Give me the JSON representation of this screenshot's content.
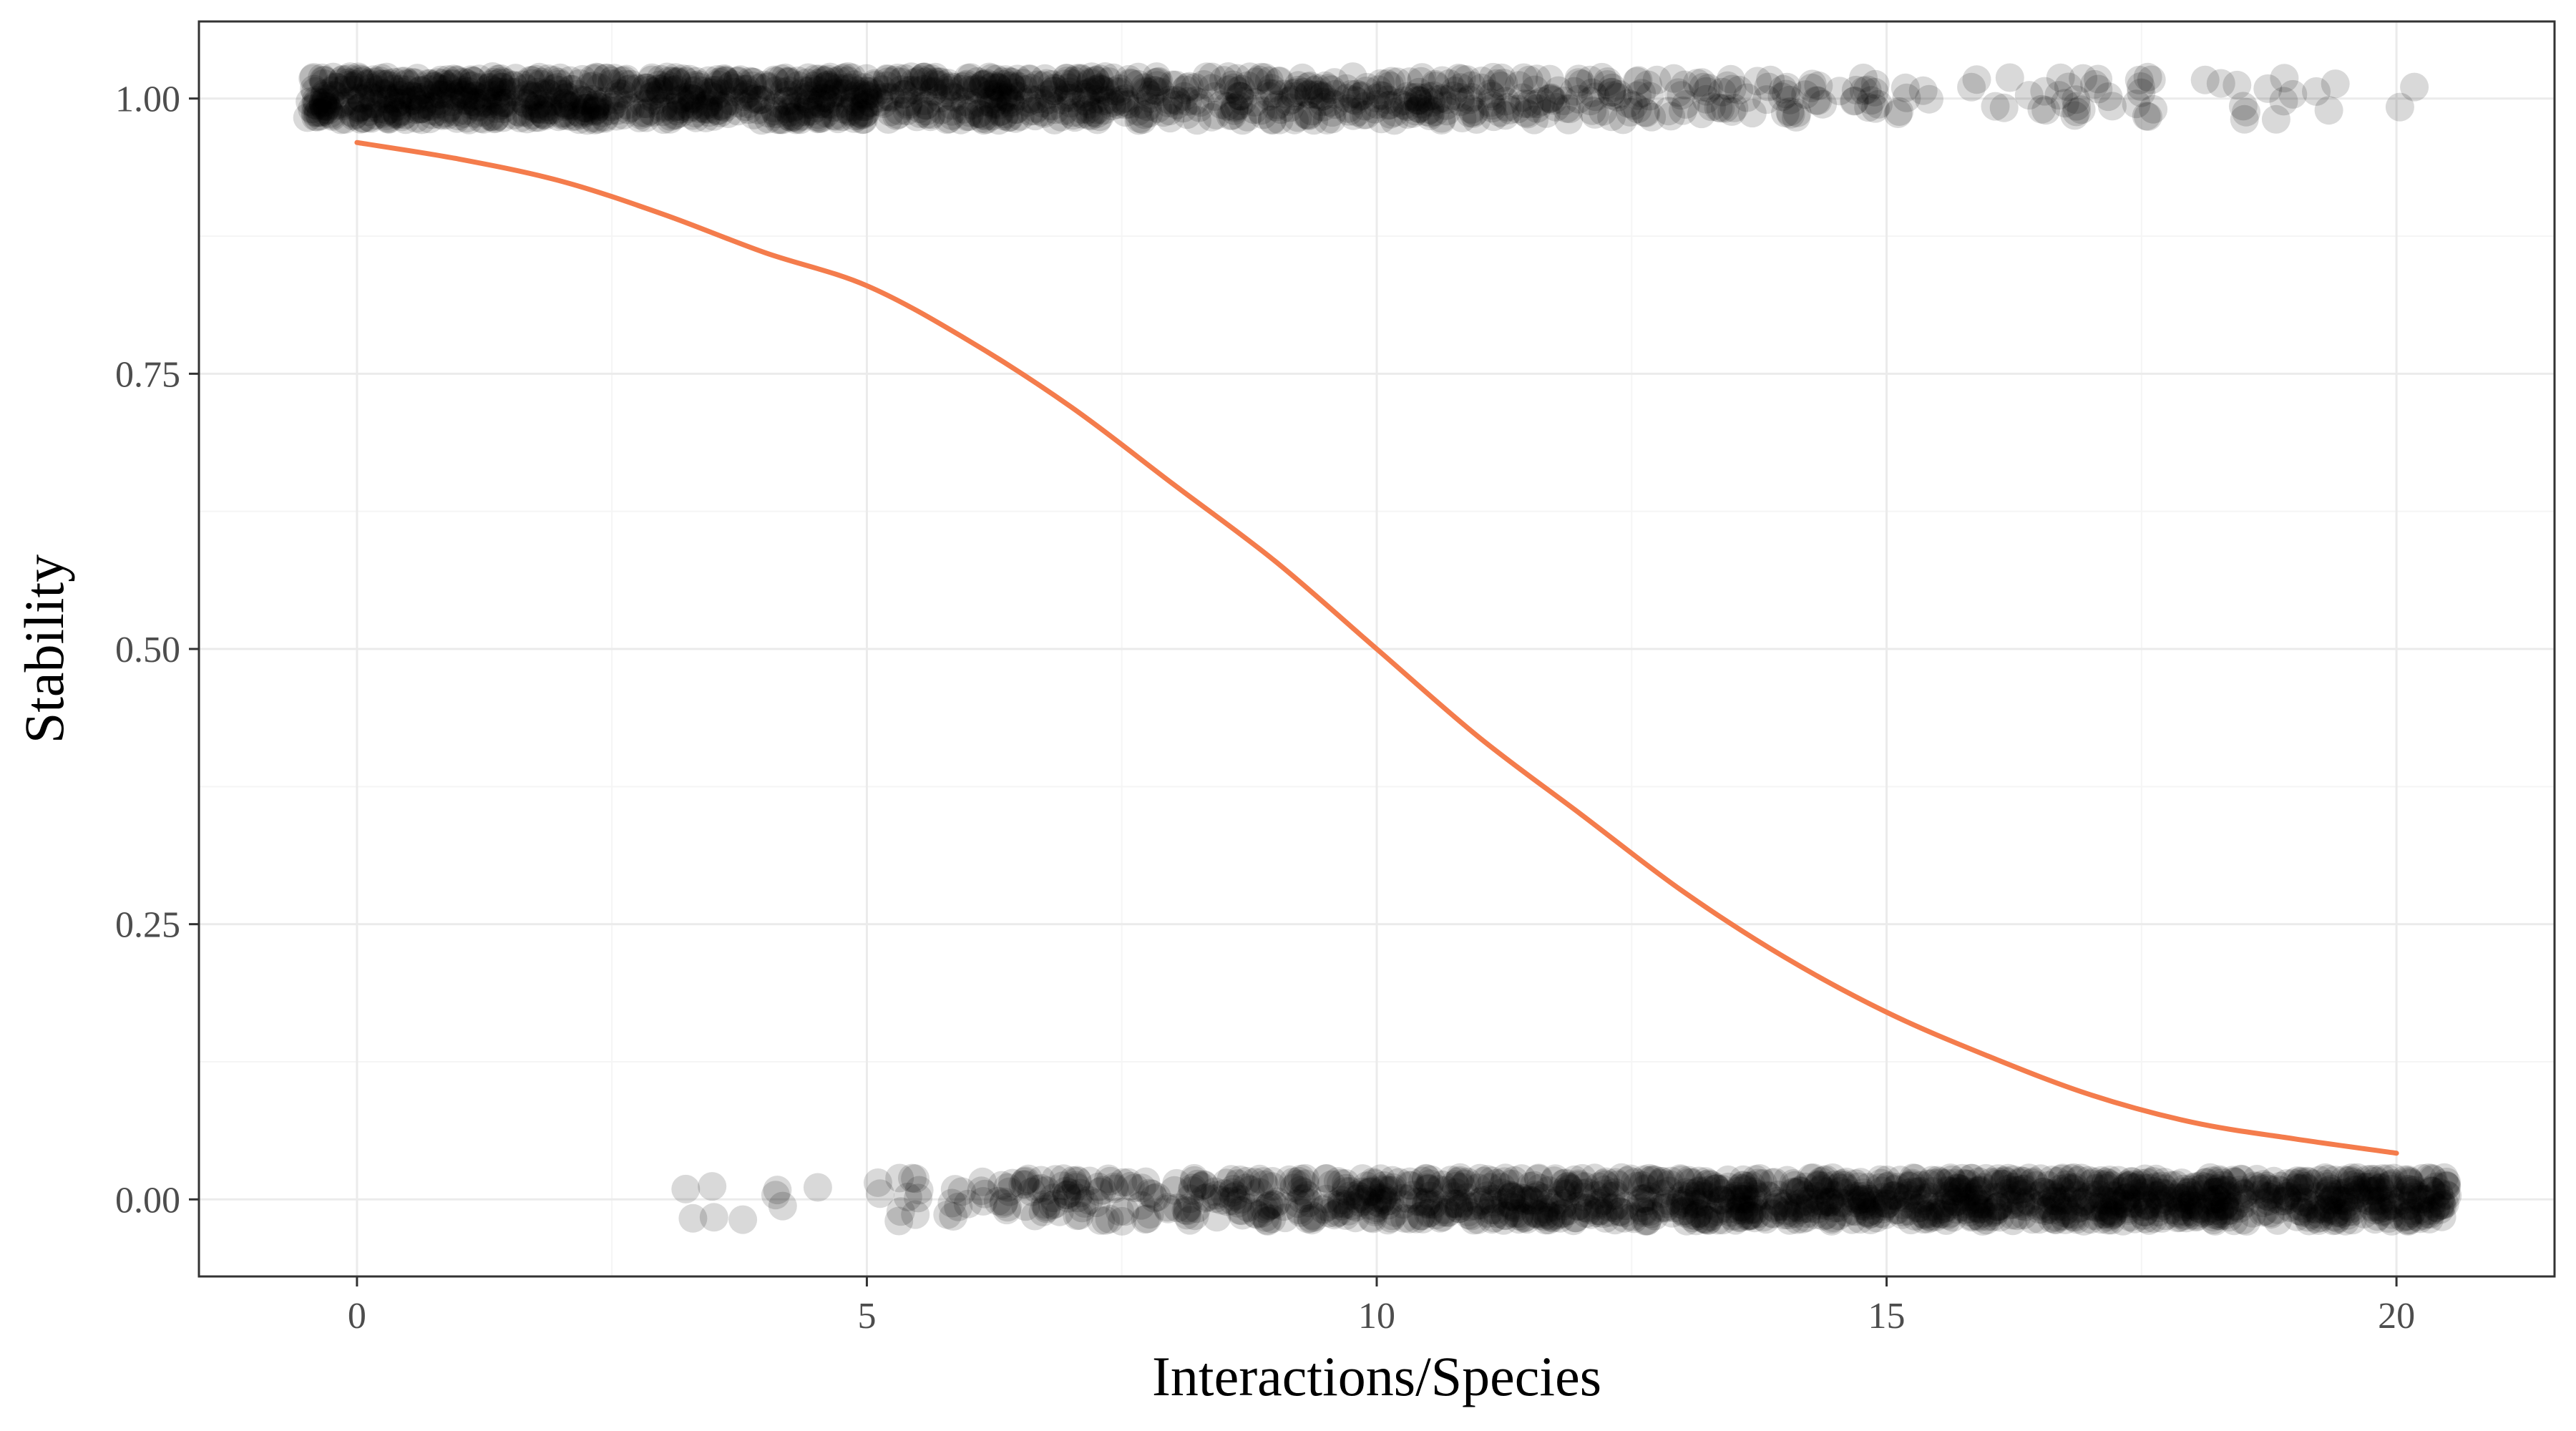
{
  "chart_data": {
    "type": "scatter",
    "title": "",
    "xlabel": "Interactions/Species",
    "ylabel": "Stability",
    "xlim": [
      -1.55,
      21.55
    ],
    "ylim": [
      -0.07,
      1.07
    ],
    "x_ticks": [
      0,
      5,
      10,
      15,
      20
    ],
    "x_tick_labels": [
      "0",
      "5",
      "10",
      "15",
      "20"
    ],
    "y_ticks": [
      0,
      0.25,
      0.5,
      0.75,
      1
    ],
    "y_tick_labels": [
      "0.00",
      "0.25",
      "0.50",
      "0.75",
      "1.00"
    ],
    "grid": true,
    "legend": "none",
    "colors": {
      "points": "#000000",
      "fit_line": "#f47c4c",
      "grid_major": "#ebebeb",
      "grid_minor": "#f5f5f5",
      "panel_border": "#333333"
    },
    "series": [
      {
        "kind": "jittered-points",
        "description_points_y1": {
          "y": 1,
          "x_range": [
            -0.5,
            20.5
          ],
          "density": "dense at low x, sparser at high x",
          "point_alpha": 0.15
        },
        "description_points_y0": {
          "y": 0,
          "x_range": [
            3.2,
            20.5
          ],
          "density": "sparse below x=5, dense at high x",
          "point_alpha": 0.15
        }
      },
      {
        "kind": "logistic-fit",
        "x": [
          0,
          1,
          2,
          3,
          4,
          5,
          6,
          7,
          8,
          9,
          10,
          11,
          12,
          13,
          14,
          15,
          16,
          17,
          18,
          19,
          20
        ],
        "y": [
          0.96,
          0.945,
          0.925,
          0.895,
          0.86,
          0.83,
          0.78,
          0.72,
          0.65,
          0.58,
          0.5,
          0.42,
          0.35,
          0.28,
          0.22,
          0.17,
          0.13,
          0.095,
          0.07,
          0.055,
          0.042
        ]
      }
    ]
  }
}
